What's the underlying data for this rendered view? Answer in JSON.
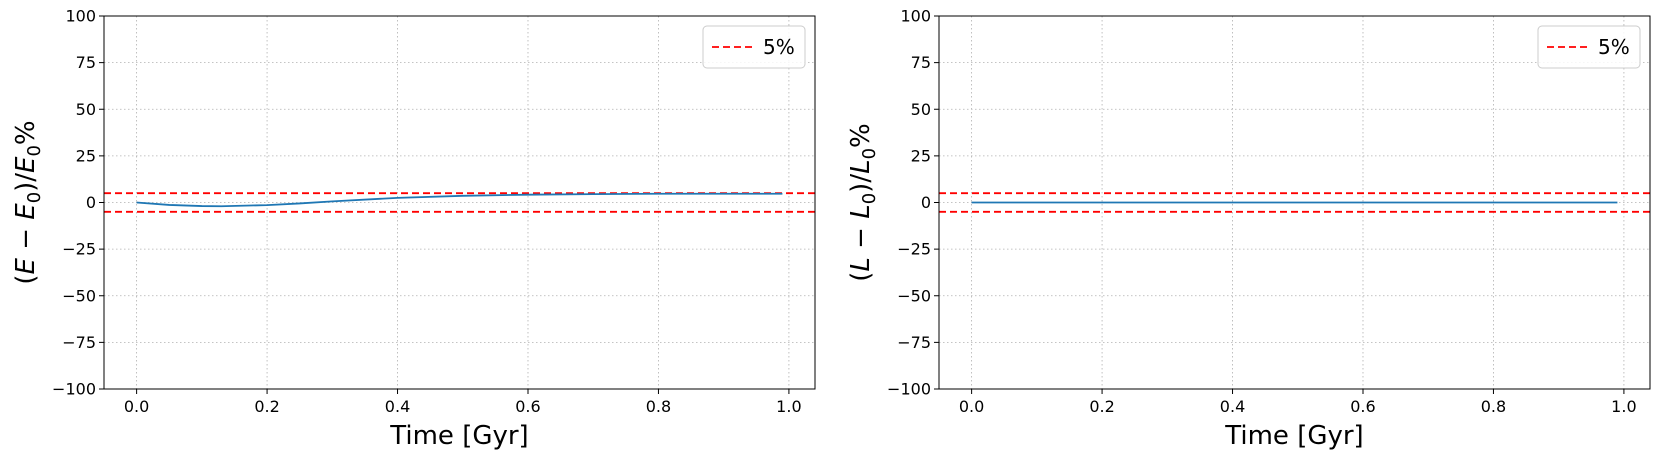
{
  "chart_data": [
    {
      "type": "line",
      "xlabel": "Time [Gyr]",
      "ylabel_parts": [
        "(",
        "E",
        " − ",
        "E",
        "0",
        ")/",
        "E",
        "0",
        "%"
      ],
      "xlim": [
        -0.05,
        1.04
      ],
      "ylim": [
        -100,
        100
      ],
      "xticks": [
        0.0,
        0.2,
        0.4,
        0.6,
        0.8,
        1.0
      ],
      "xtick_labels": [
        "0.0",
        "0.2",
        "0.4",
        "0.6",
        "0.8",
        "1.0"
      ],
      "yticks": [
        100,
        75,
        50,
        25,
        0,
        -25,
        -50,
        -75,
        -100
      ],
      "ytick_labels": [
        "100",
        "75",
        "50",
        "25",
        "0",
        "−25",
        "−50",
        "−75",
        "−100"
      ],
      "grid": true,
      "legend": {
        "placement": "top-right",
        "entries": [
          "5%"
        ]
      },
      "series": [
        {
          "color": "#1f77b4",
          "x": [
            0.0,
            0.05,
            0.1,
            0.13,
            0.2,
            0.25,
            0.3,
            0.4,
            0.5,
            0.6,
            0.7,
            0.8,
            0.9,
            0.99
          ],
          "y": [
            0.0,
            -1.3,
            -1.9,
            -2.0,
            -1.4,
            -0.5,
            0.6,
            2.5,
            3.6,
            4.2,
            4.5,
            4.7,
            4.7,
            4.7
          ]
        }
      ],
      "hlines": [
        {
          "y": 5,
          "color": "#ff0000",
          "style": "dashed",
          "label": "5%"
        },
        {
          "y": -5,
          "color": "#ff0000",
          "style": "dashed"
        }
      ]
    },
    {
      "type": "line",
      "xlabel": "Time [Gyr]",
      "ylabel_parts": [
        "(",
        "L",
        " − ",
        "L",
        "0",
        ")/",
        "L",
        "0",
        "%"
      ],
      "xlim": [
        -0.05,
        1.04
      ],
      "ylim": [
        -100,
        100
      ],
      "xticks": [
        0.0,
        0.2,
        0.4,
        0.6,
        0.8,
        1.0
      ],
      "xtick_labels": [
        "0.0",
        "0.2",
        "0.4",
        "0.6",
        "0.8",
        "1.0"
      ],
      "yticks": [
        100,
        75,
        50,
        25,
        0,
        -25,
        -50,
        -75,
        -100
      ],
      "ytick_labels": [
        "100",
        "75",
        "50",
        "25",
        "0",
        "−25",
        "−50",
        "−75",
        "−100"
      ],
      "grid": true,
      "legend": {
        "placement": "top-right",
        "entries": [
          "5%"
        ]
      },
      "series": [
        {
          "color": "#1f77b4",
          "x": [
            0.0,
            0.25,
            0.5,
            0.75,
            0.99
          ],
          "y": [
            0.0,
            0.0,
            0.0,
            0.0,
            0.0
          ]
        }
      ],
      "hlines": [
        {
          "y": 5,
          "color": "#ff0000",
          "style": "dashed",
          "label": "5%"
        },
        {
          "y": -5,
          "color": "#ff0000",
          "style": "dashed"
        }
      ]
    }
  ]
}
